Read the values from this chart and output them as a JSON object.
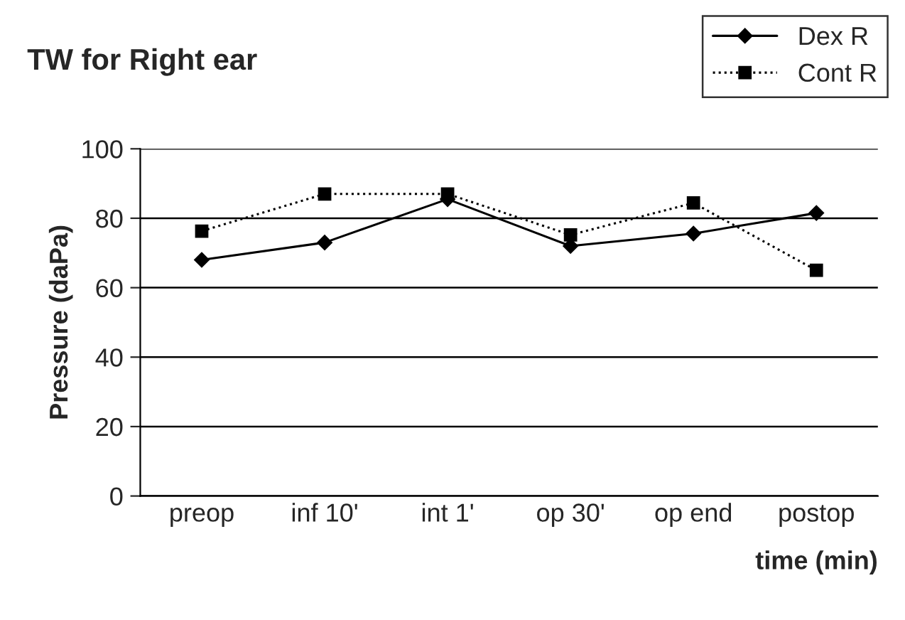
{
  "chart_data": {
    "type": "line",
    "title": "TW for Right ear",
    "xlabel": "time (min)",
    "ylabel": "Pressure (daPa)",
    "categories": [
      "preop",
      "inf 10'",
      "int 1'",
      "op 30'",
      "op end",
      "postop"
    ],
    "series": [
      {
        "name": "Dex R",
        "color": "#000000",
        "values": [
          68,
          73,
          85.5,
          72,
          75.6,
          81.5
        ],
        "marker": "diamond",
        "line_style": "solid"
      },
      {
        "name": "Cont R",
        "color": "#000000",
        "values": [
          76.3,
          87,
          87,
          75.2,
          84.4,
          65
        ],
        "marker": "square",
        "line_style": "dotted"
      }
    ],
    "ylim": [
      0,
      100
    ],
    "yticks": [
      0,
      20,
      40,
      60,
      80,
      100
    ],
    "grid": "y",
    "legend": "top right"
  }
}
